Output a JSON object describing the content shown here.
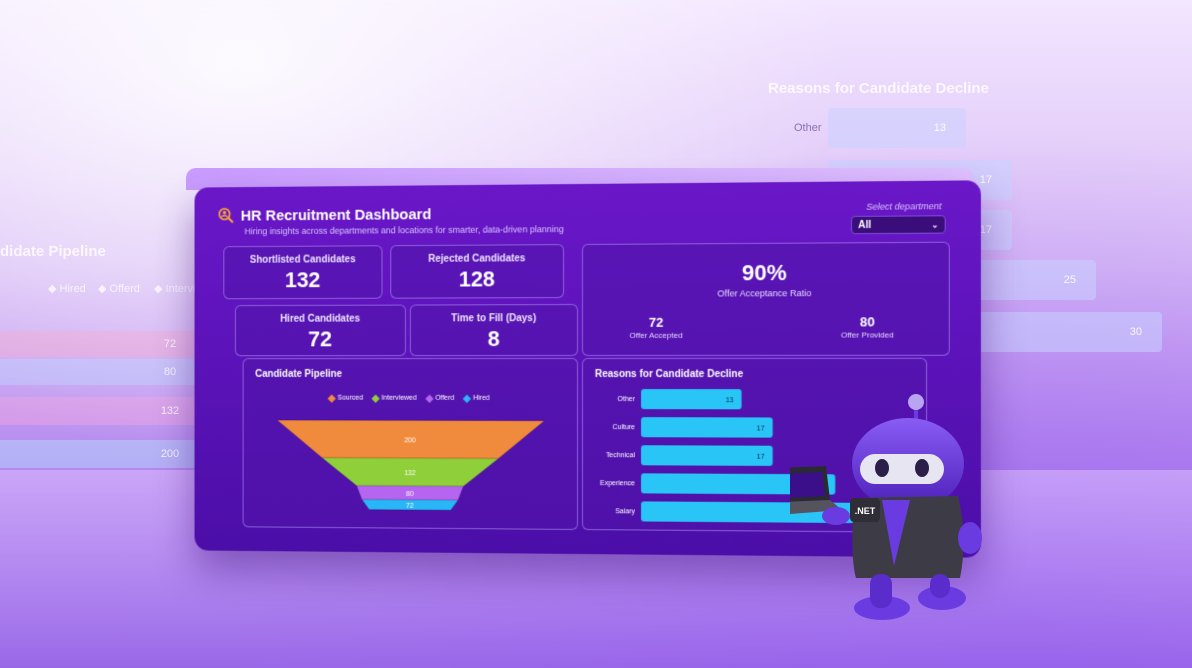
{
  "background": {
    "decline_title": "Reasons for Candidate Decline",
    "decline_bars": [
      {
        "label": "Other",
        "value": "13"
      },
      {
        "label": "",
        "value": "17"
      },
      {
        "label": "",
        "value": "17"
      },
      {
        "label": "",
        "value": "25"
      },
      {
        "label": "",
        "value": "30"
      }
    ],
    "pipeline_title": "didate Pipeline",
    "pipeline_legend": [
      "Hired",
      "Offerd",
      "Intervie"
    ],
    "pipeline_values": [
      "72",
      "80",
      "132",
      "200"
    ]
  },
  "dashboard": {
    "title": "HR Recruitment Dashboard",
    "subtitle": "Hiring insights across departments and locations for smarter, data-driven planning",
    "department_label": "Select department",
    "department_value": "All",
    "kpis": {
      "shortlisted": {
        "label": "Shortlisted Candidates",
        "value": "132"
      },
      "rejected": {
        "label": "Rejected Candidates",
        "value": "128"
      },
      "hired": {
        "label": "Hired Candidates",
        "value": "72"
      },
      "time_to_fill": {
        "label": "Time to Fill (Days)",
        "value": "8"
      }
    },
    "offer": {
      "ratio": "90%",
      "ratio_label": "Offer Acceptance Ratio",
      "accepted_value": "72",
      "accepted_label": "Offer Accepted",
      "provided_value": "80",
      "provided_label": "Offer Provided"
    }
  },
  "mascot": {
    "badge": ".NET"
  },
  "colors": {
    "sourced": "#f08a3c",
    "interviewed": "#8fcf3a",
    "offerd": "#b565f0",
    "hired": "#29b6f6"
  },
  "chart_data": [
    {
      "type": "funnel",
      "title": "Candidate Pipeline",
      "categories": [
        "Sourced",
        "Interviewed",
        "Offerd",
        "Hired"
      ],
      "values": [
        200,
        132,
        80,
        72
      ],
      "legend": "top"
    },
    {
      "type": "bar",
      "title": "Reasons for Candidate Decline",
      "categories": [
        "Other",
        "Culture",
        "Technical",
        "Experience",
        "Salary"
      ],
      "values": [
        13,
        17,
        17,
        25,
        30
      ]
    }
  ]
}
